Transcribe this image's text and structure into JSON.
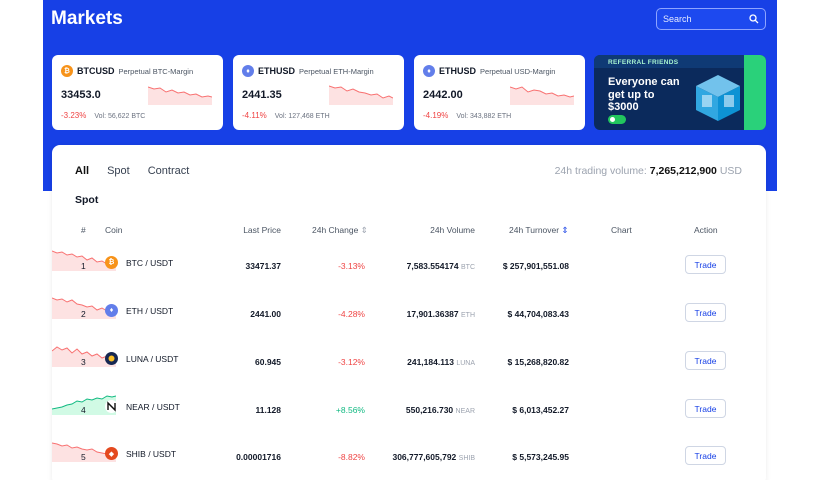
{
  "header": {
    "title": "Markets",
    "search_placeholder": "Search"
  },
  "tickers": [
    {
      "symbol": "BTCUSD",
      "subtitle": "Perpetual BTC-Margin",
      "price": "33453.0",
      "change": "-3.23%",
      "volume": "Vol: 56,622 BTC",
      "coin": "btc"
    },
    {
      "symbol": "ETHUSD",
      "subtitle": "Perpetual ETH-Margin",
      "price": "2441.35",
      "change": "-4.11%",
      "volume": "Vol: 127,468 ETH",
      "coin": "eth"
    },
    {
      "symbol": "ETHUSD",
      "subtitle": "Perpetual USD-Margin",
      "price": "2442.00",
      "change": "-4.19%",
      "volume": "Vol: 343,882 ETH",
      "coin": "eth"
    }
  ],
  "banner": {
    "label": "REFERRAL FRIENDS",
    "text": "Everyone can get up to $3000"
  },
  "tabs": [
    "All",
    "Spot",
    "Contract"
  ],
  "volume_summary": {
    "label": "24h trading volume:",
    "value": "7,265,212,900",
    "unit": "USD"
  },
  "section_title": "Spot",
  "columns": {
    "num": "#",
    "coin": "Coin",
    "last_price": "Last Price",
    "change": "24h Change",
    "volume": "24h Volume",
    "turnover": "24h Turnover",
    "chart": "Chart",
    "action": "Action"
  },
  "rows": [
    {
      "num": "1",
      "pair": "BTC / USDT",
      "price": "33471.37",
      "change": "-3.13%",
      "volume": "7,583.554174",
      "unit": "BTC",
      "turnover": "$ 257,901,551.08",
      "trend": "down",
      "action": "Trade"
    },
    {
      "num": "2",
      "pair": "ETH / USDT",
      "price": "2441.00",
      "change": "-4.28%",
      "volume": "17,901.36387",
      "unit": "ETH",
      "turnover": "$ 44,704,083.43",
      "trend": "down",
      "action": "Trade"
    },
    {
      "num": "3",
      "pair": "LUNA / USDT",
      "price": "60.945",
      "change": "-3.12%",
      "volume": "241,184.113",
      "unit": "LUNA",
      "turnover": "$ 15,268,820.82",
      "trend": "down",
      "action": "Trade"
    },
    {
      "num": "4",
      "pair": "NEAR / USDT",
      "price": "11.128",
      "change": "+8.56%",
      "volume": "550,216.730",
      "unit": "NEAR",
      "turnover": "$ 6,013,452.27",
      "trend": "up",
      "action": "Trade"
    },
    {
      "num": "5",
      "pair": "SHIB / USDT",
      "price": "0.00001716",
      "change": "-8.82%",
      "volume": "306,777,605,792",
      "unit": "SHIB",
      "turnover": "$ 5,573,245.95",
      "trend": "down",
      "action": "Trade"
    }
  ],
  "colors": {
    "brand": "#1740e6",
    "negative": "#ef4444",
    "positive": "#10b981"
  }
}
